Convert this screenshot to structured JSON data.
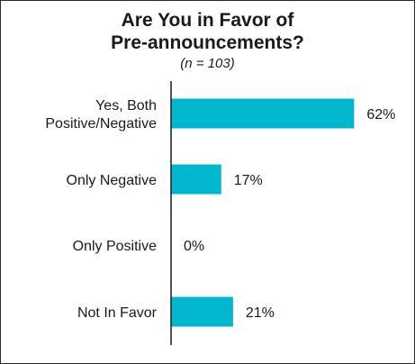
{
  "chart_data": {
    "type": "bar",
    "orientation": "horizontal",
    "title_lines": [
      "Are You in Favor of",
      "Pre-announcements?"
    ],
    "subtitle": "(n = 103)",
    "categories": [
      [
        "Yes, Both",
        "Positive/Negative"
      ],
      [
        "Only Negative"
      ],
      [
        "Only Positive"
      ],
      [
        "Not In Favor"
      ]
    ],
    "values": [
      62,
      17,
      0,
      21
    ],
    "value_labels": [
      "62%",
      "17%",
      "0%",
      "21%"
    ],
    "xlim": [
      0,
      100
    ],
    "bar_color": "#00b7cd",
    "grid": false,
    "legend": "none"
  }
}
